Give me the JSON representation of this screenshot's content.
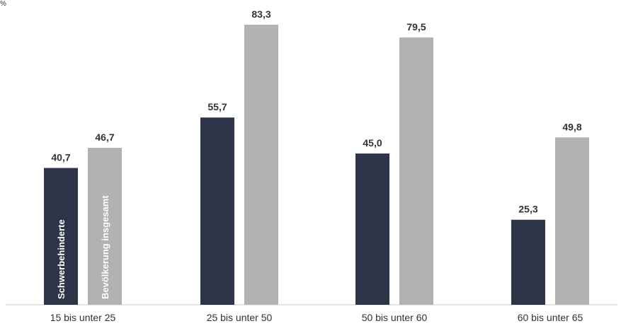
{
  "corner_text": "%",
  "chart_data": {
    "type": "bar",
    "title": "",
    "xlabel": "",
    "ylabel": "",
    "ylim": [
      0,
      90
    ],
    "grid": false,
    "legend": "in-bar labels on first category",
    "categories": [
      "15 bis unter 25",
      "25 bis unter 50",
      "50 bis unter 60",
      "60 bis unter 65"
    ],
    "series": [
      {
        "name": "Schwerbehinderte",
        "color": "#2e3548",
        "values": [
          40.7,
          55.7,
          45.0,
          25.3
        ],
        "labels": [
          "40,7",
          "55,7",
          "45,0",
          "25,3"
        ]
      },
      {
        "name": "Bevölkerung insgesamt",
        "color": "#b2b2b2",
        "values": [
          46.7,
          83.3,
          79.5,
          49.8
        ],
        "labels": [
          "46,7",
          "83,3",
          "79,5",
          "49,8"
        ]
      }
    ]
  }
}
